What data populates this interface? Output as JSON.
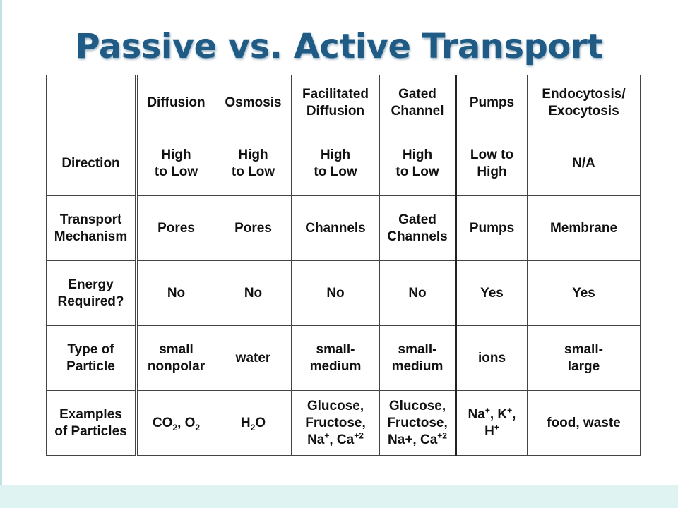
{
  "title": "Passive vs. Active Transport",
  "columns": [
    {
      "lines": [
        "Diffusion"
      ]
    },
    {
      "lines": [
        "Osmosis"
      ]
    },
    {
      "lines": [
        "Facilitated",
        "Diffusion"
      ]
    },
    {
      "lines": [
        "Gated",
        "Channel"
      ]
    },
    {
      "lines": [
        "Pumps"
      ]
    },
    {
      "lines": [
        "Endocytosis/",
        "Exocytosis"
      ]
    }
  ],
  "rows": [
    {
      "header": [
        "Direction"
      ],
      "cells": [
        [
          "High",
          "to Low"
        ],
        [
          "High",
          "to Low"
        ],
        [
          "High",
          "to Low"
        ],
        [
          "High",
          "to Low"
        ],
        [
          "Low to",
          "High"
        ],
        [
          "N/A"
        ]
      ]
    },
    {
      "header": [
        "Transport",
        "Mechanism"
      ],
      "cells": [
        [
          "Pores"
        ],
        [
          "Pores"
        ],
        [
          "Channels"
        ],
        [
          "Gated",
          "Channels"
        ],
        [
          "Pumps"
        ],
        [
          "Membrane"
        ]
      ]
    },
    {
      "header": [
        "Energy",
        "Required?"
      ],
      "cells": [
        [
          "No"
        ],
        [
          "No"
        ],
        [
          "No"
        ],
        [
          "No"
        ],
        [
          "Yes"
        ],
        [
          "Yes"
        ]
      ]
    },
    {
      "header": [
        "Type of",
        "Particle"
      ],
      "cells": [
        [
          "small",
          "nonpolar"
        ],
        [
          "water"
        ],
        [
          "small-",
          "medium"
        ],
        [
          "small-",
          "medium"
        ],
        [
          "ions"
        ],
        [
          "small-",
          "large"
        ]
      ]
    },
    {
      "header": [
        "Examples",
        "of Particles"
      ],
      "cells": [
        [
          "CO<sub>2</sub>, O<sub>2</sub>"
        ],
        [
          "H<sub>2</sub>O"
        ],
        [
          "Glucose,",
          "Fructose,",
          "Na<sup>+</sup>, Ca<sup>+2</sup>"
        ],
        [
          "Glucose,",
          "Fructose,",
          "Na+, Ca<sup>+2</sup>"
        ],
        [
          "Na<sup>+</sup>, K<sup>+</sup>,",
          "H<sup>+</sup>"
        ],
        [
          "food, waste"
        ]
      ]
    }
  ]
}
